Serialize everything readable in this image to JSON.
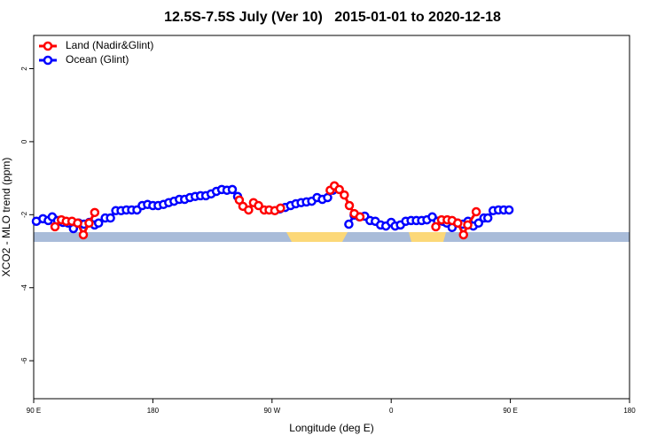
{
  "chart_data": {
    "type": "line",
    "title": "12.5S-7.5S July (Ver 10)   2015-01-01 to 2020-12-18",
    "x_label": "Longitude (deg E)",
    "y_label": "XCO2 - MLO trend (ppm)",
    "xlim": [
      90,
      540
    ],
    "ylim": [
      -7.04,
      2.91
    ],
    "xticks": [
      {
        "value": 90,
        "label": "90 E"
      },
      {
        "value": 180,
        "label": "180"
      },
      {
        "value": 270,
        "label": "90 W"
      },
      {
        "value": 360,
        "label": "0"
      },
      {
        "value": 450,
        "label": "90 E"
      },
      {
        "value": 540,
        "label": "180"
      }
    ],
    "yticks": [
      2,
      0,
      -2,
      -4,
      -6
    ],
    "legend": "top-left",
    "series": [
      {
        "name": "Land (Nadir&Glint)",
        "color": "#ff0000",
        "x": [
          106.1,
          110.9,
          114.6,
          118.9,
          123.2,
          127.5,
          131.8,
          136.1,
          null,
          245.3,
          248,
          252.3,
          256,
          259.8,
          264.1,
          267.8,
          272.1,
          276.4,
          null,
          313.9,
          317.1,
          320.8,
          324.6,
          328.4,
          332.1,
          336.4,
          null,
          393.7,
          398,
          402.3,
          406,
          410.3,
          414.6,
          417.8,
          424.2
        ],
        "values": [
          -2.33,
          -2.14,
          -2.18,
          -2.18,
          -2.23,
          -2.55,
          -2.23,
          -1.94,
          null,
          -1.6,
          -1.77,
          -1.87,
          -1.67,
          -1.75,
          -1.87,
          -1.87,
          -1.89,
          -1.82,
          null,
          -1.33,
          -1.21,
          -1.31,
          -1.46,
          -1.75,
          -1.97,
          -2.06,
          null,
          -2.33,
          -2.14,
          -2.14,
          -2.16,
          -2.23,
          -2.55,
          -2.28,
          -1.92
        ]
      },
      {
        "name": "Ocean (Glint)",
        "color": "#0000ff",
        "x": [
          92,
          97,
          101,
          104,
          108,
          112,
          116,
          120,
          124,
          128,
          132,
          136,
          139,
          144,
          148,
          152,
          156,
          160,
          164,
          168,
          172,
          176,
          180,
          184,
          188,
          192,
          196,
          200,
          204,
          208,
          212,
          216,
          220,
          224,
          228,
          232,
          236,
          240,
          244,
          null,
          276,
          280,
          284,
          288,
          292,
          296,
          300,
          304,
          308,
          312,
          316,
          null,
          328,
          332,
          336,
          340,
          344,
          348,
          352,
          356,
          360,
          363,
          367,
          371,
          375,
          379,
          383,
          387,
          391,
          395,
          399,
          402,
          406,
          410,
          414,
          418,
          422,
          426,
          430,
          433,
          437,
          441,
          445,
          449
        ],
        "values": [
          -2.18,
          -2.11,
          -2.16,
          -2.06,
          -2.16,
          -2.21,
          -2.23,
          -2.38,
          -2.23,
          -2.26,
          -2.21,
          -2.28,
          -2.23,
          -2.09,
          -2.09,
          -1.89,
          -1.89,
          -1.87,
          -1.87,
          -1.87,
          -1.75,
          -1.72,
          -1.75,
          -1.75,
          -1.72,
          -1.67,
          -1.63,
          -1.58,
          -1.58,
          -1.53,
          -1.5,
          -1.48,
          -1.48,
          -1.43,
          -1.36,
          -1.31,
          -1.33,
          -1.31,
          -1.5,
          null,
          -1.84,
          -1.8,
          -1.75,
          -1.7,
          -1.67,
          -1.65,
          -1.63,
          -1.53,
          -1.58,
          -1.53,
          -1.33,
          null,
          -2.26,
          -2.01,
          -2.06,
          -2.04,
          -2.16,
          -2.18,
          -2.28,
          -2.31,
          -2.21,
          -2.31,
          -2.28,
          -2.18,
          -2.16,
          -2.16,
          -2.16,
          -2.14,
          -2.06,
          -2.18,
          -2.18,
          -2.23,
          -2.35,
          -2.23,
          -2.26,
          -2.18,
          -2.31,
          -2.23,
          -2.09,
          -2.09,
          -1.89,
          -1.87,
          -1.87,
          -1.87
        ]
      }
    ]
  }
}
